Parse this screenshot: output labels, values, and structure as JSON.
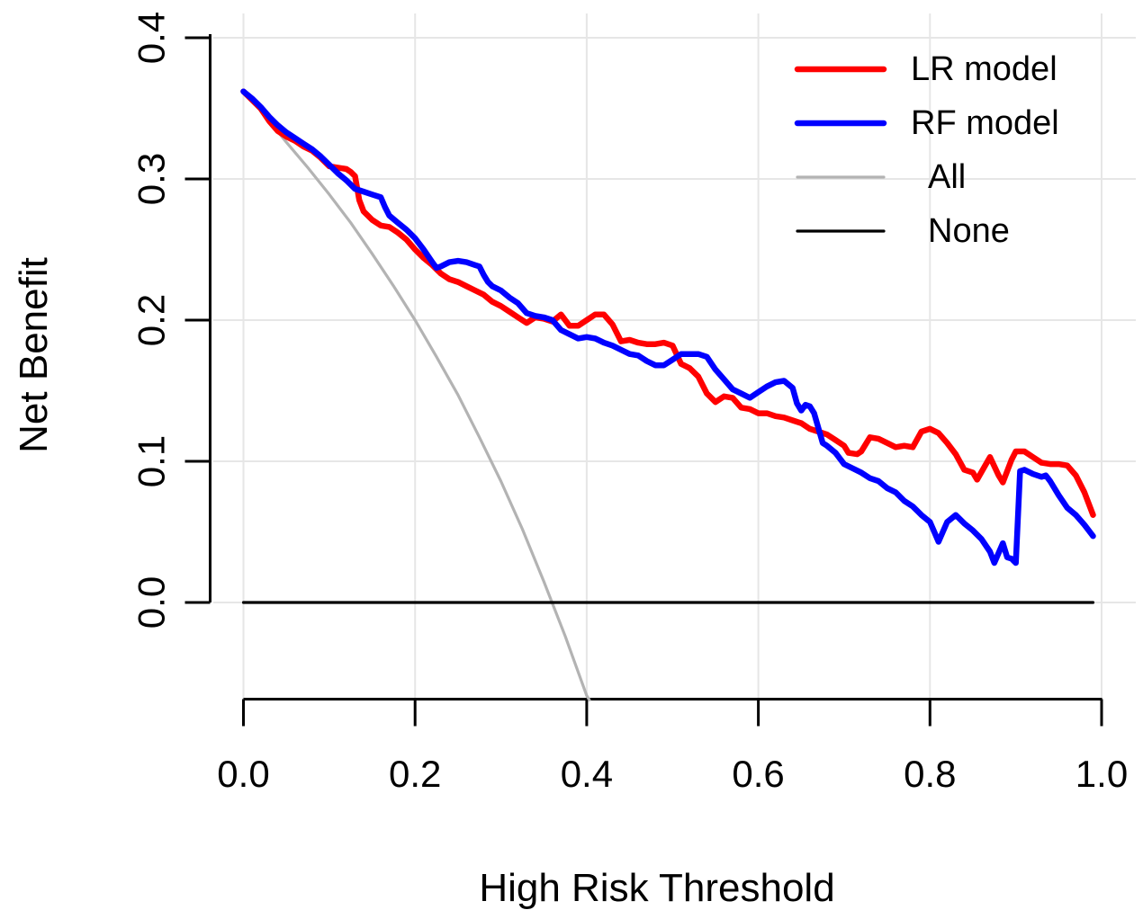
{
  "chart_data": {
    "type": "line",
    "title": "",
    "xlabel": "High Risk Threshold",
    "ylabel": "Net Benefit",
    "xlim": [
      0.0,
      1.0
    ],
    "ylim": [
      -0.069,
      0.4
    ],
    "xticks": [
      "0.0",
      "0.2",
      "0.4",
      "0.6",
      "0.8",
      "1.0"
    ],
    "yticks": [
      "0.0",
      "0.1",
      "0.2",
      "0.3",
      "0.4"
    ],
    "grid": true,
    "grid_color": "#e6e6e6",
    "background_color": "#ffffff",
    "axis_color": "#000000",
    "legend": {
      "position": "top-right",
      "items": [
        {
          "label": "LR model",
          "color": "#ff0000",
          "line_width": 6.5,
          "indent": false
        },
        {
          "label": "RF model",
          "color": "#0000ff",
          "line_width": 6.5,
          "indent": true
        },
        {
          "label": "All",
          "color": "#b3b3b3",
          "line_width": 3.2,
          "indent": true
        },
        {
          "label": "None",
          "color": "#000000",
          "line_width": 3.2,
          "indent": true
        }
      ]
    },
    "series": [
      {
        "name": "All",
        "color": "#b3b3b3",
        "width": 3.2,
        "points": [
          [
            0,
            0.362
          ],
          [
            0.025,
            0.345
          ],
          [
            0.05,
            0.326
          ],
          [
            0.075,
            0.308
          ],
          [
            0.1,
            0.289
          ],
          [
            0.125,
            0.269
          ],
          [
            0.15,
            0.247
          ],
          [
            0.175,
            0.224
          ],
          [
            0.2,
            0.2
          ],
          [
            0.225,
            0.174
          ],
          [
            0.25,
            0.147
          ],
          [
            0.275,
            0.117
          ],
          [
            0.3,
            0.086
          ],
          [
            0.325,
            0.052
          ],
          [
            0.35,
            0.015
          ],
          [
            0.375,
            -0.024
          ],
          [
            0.4,
            -0.066
          ],
          [
            0.403,
            -0.069
          ]
        ]
      },
      {
        "name": "None",
        "color": "#000000",
        "width": 3.2,
        "points": [
          [
            0,
            0
          ],
          [
            0.99,
            0
          ]
        ]
      },
      {
        "name": "LR model",
        "color": "#ff0000",
        "width": 6.5,
        "points": [
          [
            0,
            0.362
          ],
          [
            0.01,
            0.356
          ],
          [
            0.02,
            0.35
          ],
          [
            0.03,
            0.341
          ],
          [
            0.04,
            0.334
          ],
          [
            0.05,
            0.33
          ],
          [
            0.06,
            0.327
          ],
          [
            0.07,
            0.323
          ],
          [
            0.08,
            0.32
          ],
          [
            0.09,
            0.315
          ],
          [
            0.1,
            0.309
          ],
          [
            0.11,
            0.308
          ],
          [
            0.12,
            0.307
          ],
          [
            0.125,
            0.305
          ],
          [
            0.13,
            0.302
          ],
          [
            0.135,
            0.285
          ],
          [
            0.14,
            0.277
          ],
          [
            0.15,
            0.271
          ],
          [
            0.16,
            0.267
          ],
          [
            0.17,
            0.266
          ],
          [
            0.18,
            0.262
          ],
          [
            0.19,
            0.257
          ],
          [
            0.2,
            0.25
          ],
          [
            0.21,
            0.244
          ],
          [
            0.22,
            0.239
          ],
          [
            0.23,
            0.233
          ],
          [
            0.24,
            0.229
          ],
          [
            0.25,
            0.227
          ],
          [
            0.26,
            0.224
          ],
          [
            0.27,
            0.221
          ],
          [
            0.28,
            0.218
          ],
          [
            0.29,
            0.213
          ],
          [
            0.3,
            0.21
          ],
          [
            0.31,
            0.206
          ],
          [
            0.32,
            0.202
          ],
          [
            0.33,
            0.198
          ],
          [
            0.34,
            0.202
          ],
          [
            0.35,
            0.201
          ],
          [
            0.36,
            0.199
          ],
          [
            0.37,
            0.204
          ],
          [
            0.38,
            0.196
          ],
          [
            0.39,
            0.196
          ],
          [
            0.4,
            0.2
          ],
          [
            0.41,
            0.204
          ],
          [
            0.42,
            0.204
          ],
          [
            0.43,
            0.197
          ],
          [
            0.44,
            0.185
          ],
          [
            0.45,
            0.186
          ],
          [
            0.46,
            0.184
          ],
          [
            0.47,
            0.183
          ],
          [
            0.48,
            0.183
          ],
          [
            0.49,
            0.184
          ],
          [
            0.5,
            0.182
          ],
          [
            0.51,
            0.169
          ],
          [
            0.52,
            0.166
          ],
          [
            0.53,
            0.16
          ],
          [
            0.54,
            0.148
          ],
          [
            0.55,
            0.142
          ],
          [
            0.56,
            0.146
          ],
          [
            0.57,
            0.145
          ],
          [
            0.58,
            0.138
          ],
          [
            0.59,
            0.137
          ],
          [
            0.6,
            0.134
          ],
          [
            0.61,
            0.134
          ],
          [
            0.62,
            0.132
          ],
          [
            0.63,
            0.131
          ],
          [
            0.64,
            0.129
          ],
          [
            0.65,
            0.127
          ],
          [
            0.66,
            0.123
          ],
          [
            0.67,
            0.121
          ],
          [
            0.68,
            0.119
          ],
          [
            0.69,
            0.115
          ],
          [
            0.7,
            0.111
          ],
          [
            0.705,
            0.106
          ],
          [
            0.715,
            0.105
          ],
          [
            0.72,
            0.107
          ],
          [
            0.73,
            0.117
          ],
          [
            0.74,
            0.116
          ],
          [
            0.75,
            0.113
          ],
          [
            0.76,
            0.11
          ],
          [
            0.77,
            0.111
          ],
          [
            0.78,
            0.11
          ],
          [
            0.79,
            0.121
          ],
          [
            0.8,
            0.123
          ],
          [
            0.81,
            0.12
          ],
          [
            0.82,
            0.113
          ],
          [
            0.83,
            0.105
          ],
          [
            0.84,
            0.094
          ],
          [
            0.85,
            0.092
          ],
          [
            0.855,
            0.087
          ],
          [
            0.87,
            0.103
          ],
          [
            0.88,
            0.09
          ],
          [
            0.885,
            0.085
          ],
          [
            0.895,
            0.101
          ],
          [
            0.9,
            0.107
          ],
          [
            0.91,
            0.107
          ],
          [
            0.92,
            0.103
          ],
          [
            0.93,
            0.099
          ],
          [
            0.94,
            0.098
          ],
          [
            0.95,
            0.098
          ],
          [
            0.96,
            0.097
          ],
          [
            0.97,
            0.09
          ],
          [
            0.98,
            0.078
          ],
          [
            0.99,
            0.062
          ]
        ]
      },
      {
        "name": "RF model",
        "color": "#0000ff",
        "width": 6.5,
        "points": [
          [
            0,
            0.362
          ],
          [
            0.01,
            0.357
          ],
          [
            0.02,
            0.351
          ],
          [
            0.03,
            0.344
          ],
          [
            0.04,
            0.338
          ],
          [
            0.05,
            0.333
          ],
          [
            0.06,
            0.329
          ],
          [
            0.07,
            0.325
          ],
          [
            0.08,
            0.321
          ],
          [
            0.09,
            0.316
          ],
          [
            0.1,
            0.31
          ],
          [
            0.11,
            0.304
          ],
          [
            0.12,
            0.299
          ],
          [
            0.13,
            0.293
          ],
          [
            0.14,
            0.291
          ],
          [
            0.15,
            0.289
          ],
          [
            0.16,
            0.287
          ],
          [
            0.165,
            0.28
          ],
          [
            0.17,
            0.274
          ],
          [
            0.18,
            0.269
          ],
          [
            0.19,
            0.264
          ],
          [
            0.2,
            0.258
          ],
          [
            0.21,
            0.25
          ],
          [
            0.22,
            0.241
          ],
          [
            0.225,
            0.237
          ],
          [
            0.23,
            0.238
          ],
          [
            0.24,
            0.241
          ],
          [
            0.25,
            0.242
          ],
          [
            0.26,
            0.241
          ],
          [
            0.27,
            0.239
          ],
          [
            0.275,
            0.238
          ],
          [
            0.28,
            0.232
          ],
          [
            0.285,
            0.227
          ],
          [
            0.29,
            0.224
          ],
          [
            0.3,
            0.221
          ],
          [
            0.31,
            0.216
          ],
          [
            0.32,
            0.212
          ],
          [
            0.33,
            0.205
          ],
          [
            0.34,
            0.203
          ],
          [
            0.35,
            0.202
          ],
          [
            0.36,
            0.2
          ],
          [
            0.37,
            0.193
          ],
          [
            0.38,
            0.19
          ],
          [
            0.39,
            0.187
          ],
          [
            0.4,
            0.188
          ],
          [
            0.41,
            0.187
          ],
          [
            0.42,
            0.184
          ],
          [
            0.43,
            0.182
          ],
          [
            0.44,
            0.179
          ],
          [
            0.45,
            0.176
          ],
          [
            0.46,
            0.175
          ],
          [
            0.47,
            0.171
          ],
          [
            0.48,
            0.168
          ],
          [
            0.49,
            0.168
          ],
          [
            0.5,
            0.172
          ],
          [
            0.51,
            0.176
          ],
          [
            0.52,
            0.176
          ],
          [
            0.53,
            0.176
          ],
          [
            0.54,
            0.174
          ],
          [
            0.55,
            0.165
          ],
          [
            0.56,
            0.158
          ],
          [
            0.57,
            0.151
          ],
          [
            0.58,
            0.148
          ],
          [
            0.59,
            0.145
          ],
          [
            0.6,
            0.149
          ],
          [
            0.61,
            0.153
          ],
          [
            0.62,
            0.156
          ],
          [
            0.63,
            0.157
          ],
          [
            0.64,
            0.152
          ],
          [
            0.645,
            0.141
          ],
          [
            0.65,
            0.136
          ],
          [
            0.655,
            0.14
          ],
          [
            0.66,
            0.139
          ],
          [
            0.665,
            0.134
          ],
          [
            0.675,
            0.113
          ],
          [
            0.68,
            0.111
          ],
          [
            0.69,
            0.106
          ],
          [
            0.7,
            0.098
          ],
          [
            0.71,
            0.095
          ],
          [
            0.72,
            0.092
          ],
          [
            0.73,
            0.088
          ],
          [
            0.74,
            0.086
          ],
          [
            0.75,
            0.081
          ],
          [
            0.76,
            0.078
          ],
          [
            0.77,
            0.072
          ],
          [
            0.78,
            0.068
          ],
          [
            0.79,
            0.062
          ],
          [
            0.8,
            0.057
          ],
          [
            0.805,
            0.05
          ],
          [
            0.81,
            0.043
          ],
          [
            0.815,
            0.05
          ],
          [
            0.82,
            0.057
          ],
          [
            0.83,
            0.062
          ],
          [
            0.84,
            0.056
          ],
          [
            0.85,
            0.051
          ],
          [
            0.86,
            0.045
          ],
          [
            0.87,
            0.036
          ],
          [
            0.875,
            0.028
          ],
          [
            0.885,
            0.042
          ],
          [
            0.89,
            0.032
          ],
          [
            0.895,
            0.031
          ],
          [
            0.9,
            0.028
          ],
          [
            0.905,
            0.093
          ],
          [
            0.91,
            0.094
          ],
          [
            0.92,
            0.091
          ],
          [
            0.93,
            0.089
          ],
          [
            0.935,
            0.09
          ],
          [
            0.94,
            0.086
          ],
          [
            0.95,
            0.076
          ],
          [
            0.96,
            0.067
          ],
          [
            0.97,
            0.062
          ],
          [
            0.98,
            0.055
          ],
          [
            0.99,
            0.047
          ]
        ]
      }
    ]
  }
}
